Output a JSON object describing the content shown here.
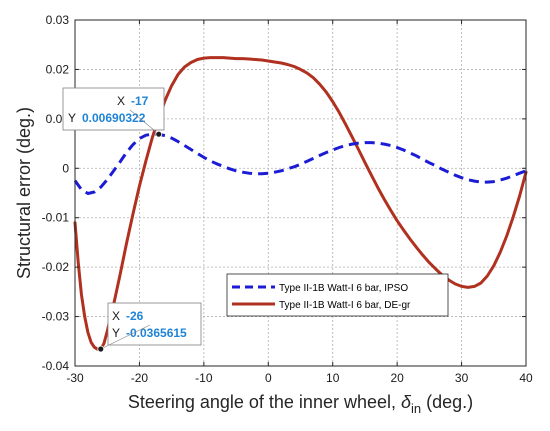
{
  "chart_data": {
    "type": "line",
    "xlabel_main": "Steering angle of the inner wheel, ",
    "xlabel_symbol": "δ",
    "xlabel_sub": "in",
    "xlabel_unit": " (deg.)",
    "ylabel": "Structural error (deg.)",
    "xlim": [
      -30,
      40
    ],
    "ylim": [
      -0.04,
      0.03
    ],
    "x_ticks": [
      -30,
      -20,
      -10,
      0,
      10,
      20,
      30,
      40
    ],
    "y_ticks": [
      -0.04,
      -0.03,
      -0.02,
      -0.01,
      0,
      0.01,
      0.02,
      0.03
    ],
    "x_tick_labels": [
      "-30",
      "-20",
      "-10",
      "0",
      "10",
      "20",
      "30",
      "40"
    ],
    "y_tick_labels": [
      "-0.04",
      "-0.03",
      "-0.02",
      "-0.01",
      "0",
      "0.01",
      "0.02",
      "0.03"
    ],
    "grid": true,
    "legend_position": "lower-right",
    "series": [
      {
        "name": "Type II-1B Watt-I 6 bar, IPSO",
        "color": "#1c1cd6",
        "style": "dashed",
        "x": [
          -30,
          -29,
          -28,
          -27,
          -26,
          -25,
          -24,
          -23,
          -22,
          -21,
          -20,
          -19,
          -18,
          -17,
          -16,
          -15,
          -14,
          -13,
          -12,
          -11,
          -10,
          -9,
          -8,
          -7,
          -6,
          -5,
          -4,
          -3,
          -2,
          -1,
          0,
          1,
          2,
          3,
          4,
          5,
          6,
          7,
          8,
          9,
          10,
          11,
          12,
          13,
          14,
          15,
          16,
          17,
          18,
          19,
          20,
          21,
          22,
          23,
          24,
          25,
          26,
          27,
          28,
          29,
          30,
          31,
          32,
          33,
          34,
          35,
          36,
          37,
          38,
          39,
          40
        ],
        "y": [
          -0.0025,
          -0.0043,
          -0.0051,
          -0.0048,
          -0.0038,
          -0.0023,
          -0.0005,
          0.0013,
          0.0032,
          0.0048,
          0.006,
          0.0067,
          0.0069,
          0.0069,
          0.0066,
          0.0061,
          0.0054,
          0.0046,
          0.0038,
          0.003,
          0.0022,
          0.0015,
          0.0009,
          0.0004,
          -0.0001,
          -0.0005,
          -0.0008,
          -0.001,
          -0.0011,
          -0.0011,
          -0.001,
          -0.0008,
          -0.0005,
          -0.0001,
          0.0003,
          0.0008,
          0.0014,
          0.002,
          0.0026,
          0.0032,
          0.0037,
          0.0042,
          0.0046,
          0.0049,
          0.0051,
          0.0052,
          0.0052,
          0.0051,
          0.0049,
          0.0046,
          0.0042,
          0.0037,
          0.0031,
          0.0025,
          0.0018,
          0.0011,
          0.0005,
          -0.0002,
          -0.0008,
          -0.0014,
          -0.0019,
          -0.0023,
          -0.0026,
          -0.0028,
          -0.0028,
          -0.0027,
          -0.0024,
          -0.002,
          -0.0015,
          -0.001,
          -0.0005
        ]
      },
      {
        "name": "Type II-1B Watt-I 6 bar, DE-gr",
        "color": "#b0311f",
        "style": "solid",
        "x": [
          -30,
          -29.5,
          -29,
          -28.5,
          -28,
          -27.5,
          -27,
          -26.5,
          -26,
          -25.5,
          -25,
          -24,
          -23,
          -22,
          -21,
          -20,
          -19,
          -18,
          -17,
          -16,
          -15,
          -14,
          -13,
          -12,
          -11,
          -10,
          -9,
          -8,
          -7,
          -6,
          -5,
          -4,
          -3,
          -2,
          -1,
          0,
          1,
          2,
          3,
          4,
          5,
          6,
          7,
          8,
          9,
          10,
          11,
          12,
          13,
          14,
          15,
          16,
          17,
          18,
          19,
          20,
          21,
          22,
          23,
          24,
          25,
          26,
          27,
          28,
          29,
          30,
          31,
          32,
          33,
          34,
          35,
          36,
          37,
          38,
          39,
          40
        ],
        "y": [
          -0.011,
          -0.019,
          -0.0255,
          -0.03,
          -0.0332,
          -0.0352,
          -0.0362,
          -0.0366,
          -0.0366,
          -0.0354,
          -0.033,
          -0.0275,
          -0.0215,
          -0.0152,
          -0.0092,
          -0.0036,
          0.0015,
          0.0062,
          0.0102,
          0.0138,
          0.0167,
          0.019,
          0.0205,
          0.0214,
          0.022,
          0.0223,
          0.0224,
          0.0224,
          0.0224,
          0.0223,
          0.0222,
          0.0222,
          0.0221,
          0.022,
          0.0219,
          0.0217,
          0.0215,
          0.0213,
          0.021,
          0.0206,
          0.02,
          0.0193,
          0.0183,
          0.017,
          0.0154,
          0.0135,
          0.0113,
          0.0089,
          0.0064,
          0.0038,
          0.0012,
          -0.0014,
          -0.0039,
          -0.0063,
          -0.0085,
          -0.0106,
          -0.0125,
          -0.0143,
          -0.016,
          -0.0176,
          -0.0191,
          -0.0204,
          -0.0216,
          -0.0226,
          -0.0234,
          -0.0239,
          -0.0241,
          -0.0239,
          -0.0232,
          -0.0218,
          -0.0197,
          -0.017,
          -0.0137,
          -0.0099,
          -0.0056,
          -0.0008
        ]
      }
    ],
    "datatips": [
      {
        "x_label": "X",
        "y_label": "Y",
        "x_value": "-17",
        "y_value": "0.00690322",
        "x": -17,
        "y": 0.00690322
      },
      {
        "x_label": "X",
        "y_label": "Y",
        "x_value": "-26",
        "y_value": "-0.0365615",
        "x": -26,
        "y": -0.0365615
      }
    ]
  }
}
